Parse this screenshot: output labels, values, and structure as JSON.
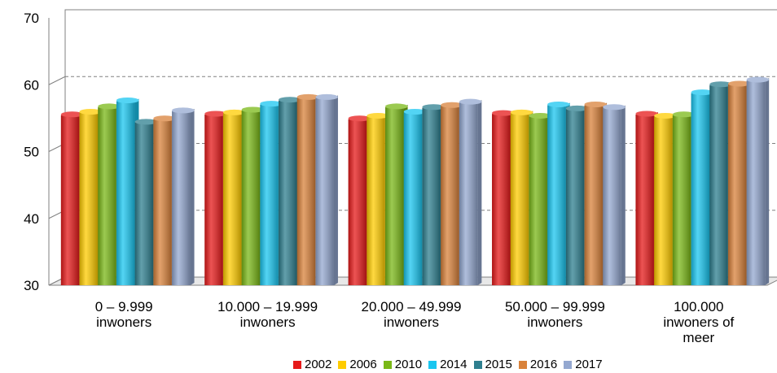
{
  "chart_data": {
    "type": "bar",
    "categories": [
      "0 – 9.999\ninwoners",
      "10.000 – 19.999\ninwoners",
      "20.000 – 49.999\ninwoners",
      "50.000 – 99.999\ninwoners",
      "100.000\ninwoners of\nmeer"
    ],
    "series": [
      {
        "name": "2002",
        "color": "#e61a1a",
        "values": [
          55.8,
          55.9,
          55.2,
          56.0,
          55.9
        ]
      },
      {
        "name": "2006",
        "color": "#ffcc00",
        "values": [
          56.2,
          56.1,
          55.6,
          56.1,
          55.6
        ]
      },
      {
        "name": "2010",
        "color": "#7ab817",
        "values": [
          57.0,
          56.5,
          57.0,
          55.6,
          55.8
        ]
      },
      {
        "name": "2014",
        "color": "#1ac6f0",
        "values": [
          57.9,
          57.4,
          56.2,
          57.3,
          59.1
        ]
      },
      {
        "name": "2015",
        "color": "#2e7f8f",
        "values": [
          54.7,
          58.0,
          56.9,
          56.7,
          60.3
        ]
      },
      {
        "name": "2016",
        "color": "#d9823b",
        "values": [
          55.2,
          58.4,
          57.2,
          57.3,
          60.4
        ]
      },
      {
        "name": "2017",
        "color": "#94a8d0",
        "values": [
          56.4,
          58.4,
          57.7,
          56.9,
          61.0
        ]
      }
    ],
    "yticks": [
      30,
      40,
      50,
      60,
      70
    ],
    "ylim": [
      30,
      70
    ],
    "grid": true,
    "legend_position": "bottom"
  }
}
